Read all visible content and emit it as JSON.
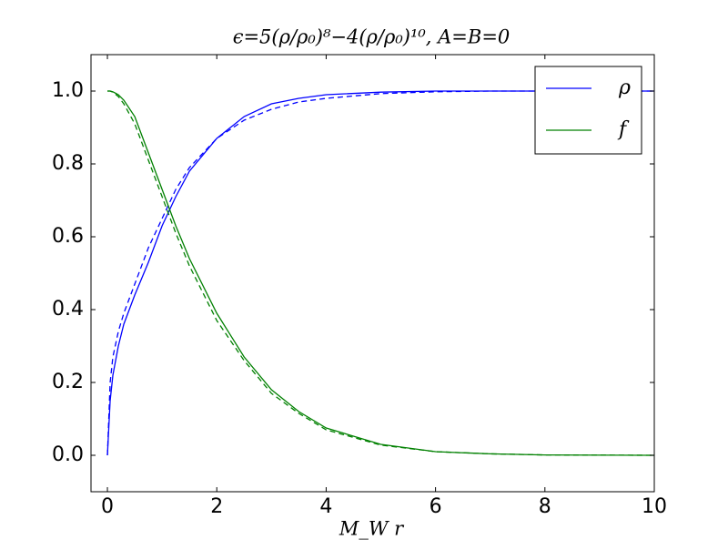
{
  "chart_data": {
    "type": "line",
    "title": "ϵ=5(ρ/ρ₀)⁸−4(ρ/ρ₀)¹⁰, A=B=0",
    "xlabel": "M_W r",
    "x": [
      0,
      0.05,
      0.1,
      0.2,
      0.3,
      0.5,
      0.75,
      1,
      1.25,
      1.5,
      2,
      2.5,
      3,
      3.5,
      4,
      5,
      6,
      7,
      8,
      10
    ],
    "series": [
      {
        "name": "ρ",
        "color": "#0000ff",
        "dashed": false,
        "values": [
          0,
          0.15,
          0.22,
          0.3,
          0.36,
          0.44,
          0.53,
          0.63,
          0.71,
          0.78,
          0.87,
          0.93,
          0.965,
          0.98,
          0.99,
          0.997,
          1,
          1,
          1,
          1
        ]
      },
      {
        "color": "#0000ff",
        "dashed": true,
        "values": [
          0,
          0.2,
          0.27,
          0.34,
          0.39,
          0.47,
          0.57,
          0.65,
          0.73,
          0.79,
          0.87,
          0.92,
          0.95,
          0.97,
          0.98,
          0.993,
          0.998,
          1,
          1,
          1
        ]
      },
      {
        "name": "f",
        "color": "#008000",
        "dashed": false,
        "values": [
          1,
          1,
          0.998,
          0.99,
          0.975,
          0.93,
          0.83,
          0.73,
          0.63,
          0.54,
          0.39,
          0.27,
          0.18,
          0.12,
          0.075,
          0.03,
          0.01,
          0.004,
          0.001,
          0
        ]
      },
      {
        "color": "#008000",
        "dashed": true,
        "values": [
          1,
          1,
          0.997,
          0.985,
          0.965,
          0.91,
          0.81,
          0.71,
          0.61,
          0.52,
          0.37,
          0.26,
          0.17,
          0.115,
          0.07,
          0.028,
          0.01,
          0.004,
          0.001,
          0
        ]
      }
    ],
    "xlim": [
      -0.3,
      10
    ],
    "ylim": [
      -0.1,
      1.1
    ],
    "xticks": [
      0,
      2,
      4,
      6,
      8,
      10
    ],
    "yticks": [
      {
        "value": 0,
        "label": "0.0"
      },
      0.2,
      0.4,
      0.6,
      0.8,
      {
        "value": 1,
        "label": "1.0"
      }
    ],
    "legend": "upper right"
  }
}
